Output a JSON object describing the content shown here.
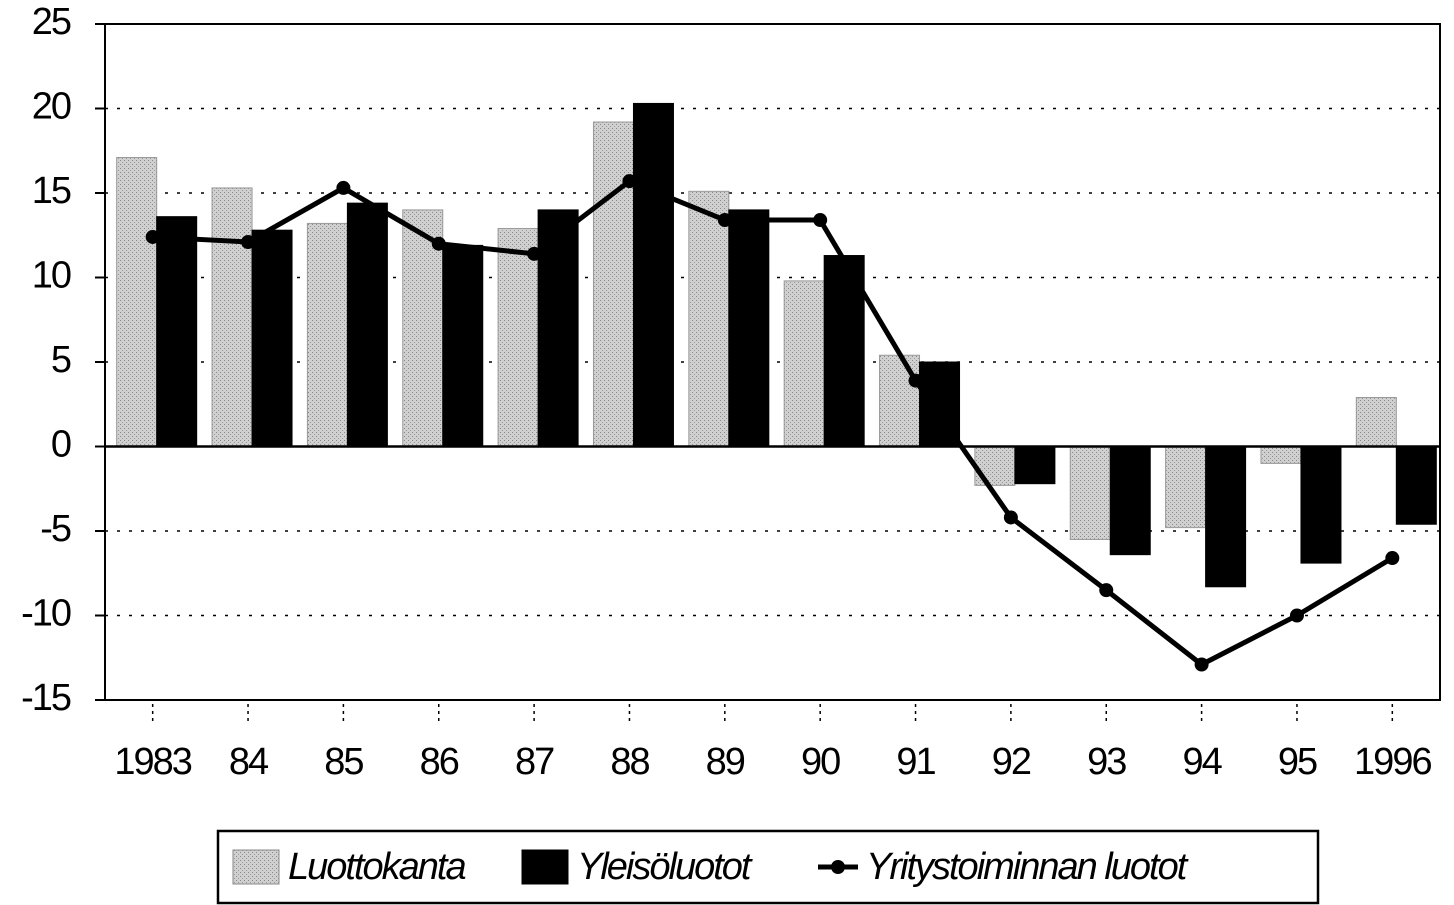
{
  "chart_data": {
    "type": "bar_line",
    "categories": [
      "1983",
      "84",
      "85",
      "86",
      "87",
      "88",
      "89",
      "90",
      "91",
      "92",
      "93",
      "94",
      "95",
      "1996"
    ],
    "series": [
      {
        "name": "Luottokanta",
        "type": "bar",
        "color": "#c8c8c8",
        "values": [
          17.1,
          15.3,
          13.2,
          14.0,
          12.9,
          19.2,
          15.1,
          9.8,
          5.4,
          -2.3,
          -5.5,
          -4.8,
          -1.0,
          2.9
        ]
      },
      {
        "name": "Yleisöluotot",
        "type": "bar",
        "color": "#000000",
        "values": [
          13.6,
          12.8,
          14.4,
          11.9,
          14.0,
          20.3,
          14.0,
          11.3,
          5.0,
          -2.2,
          -6.4,
          -8.3,
          -6.9,
          -4.6
        ]
      },
      {
        "name": "Yritystoiminnan luotot",
        "type": "line",
        "color": "#000000",
        "values": [
          12.4,
          12.1,
          15.3,
          12.0,
          11.4,
          15.7,
          13.4,
          13.4,
          3.9,
          -4.2,
          -8.5,
          -12.9,
          -10.0,
          -6.6
        ]
      }
    ],
    "ylim": [
      -15,
      25
    ],
    "yticks": [
      -15,
      -10,
      -5,
      0,
      5,
      10,
      15,
      20,
      25
    ],
    "grid": true,
    "legend": "bottom"
  }
}
